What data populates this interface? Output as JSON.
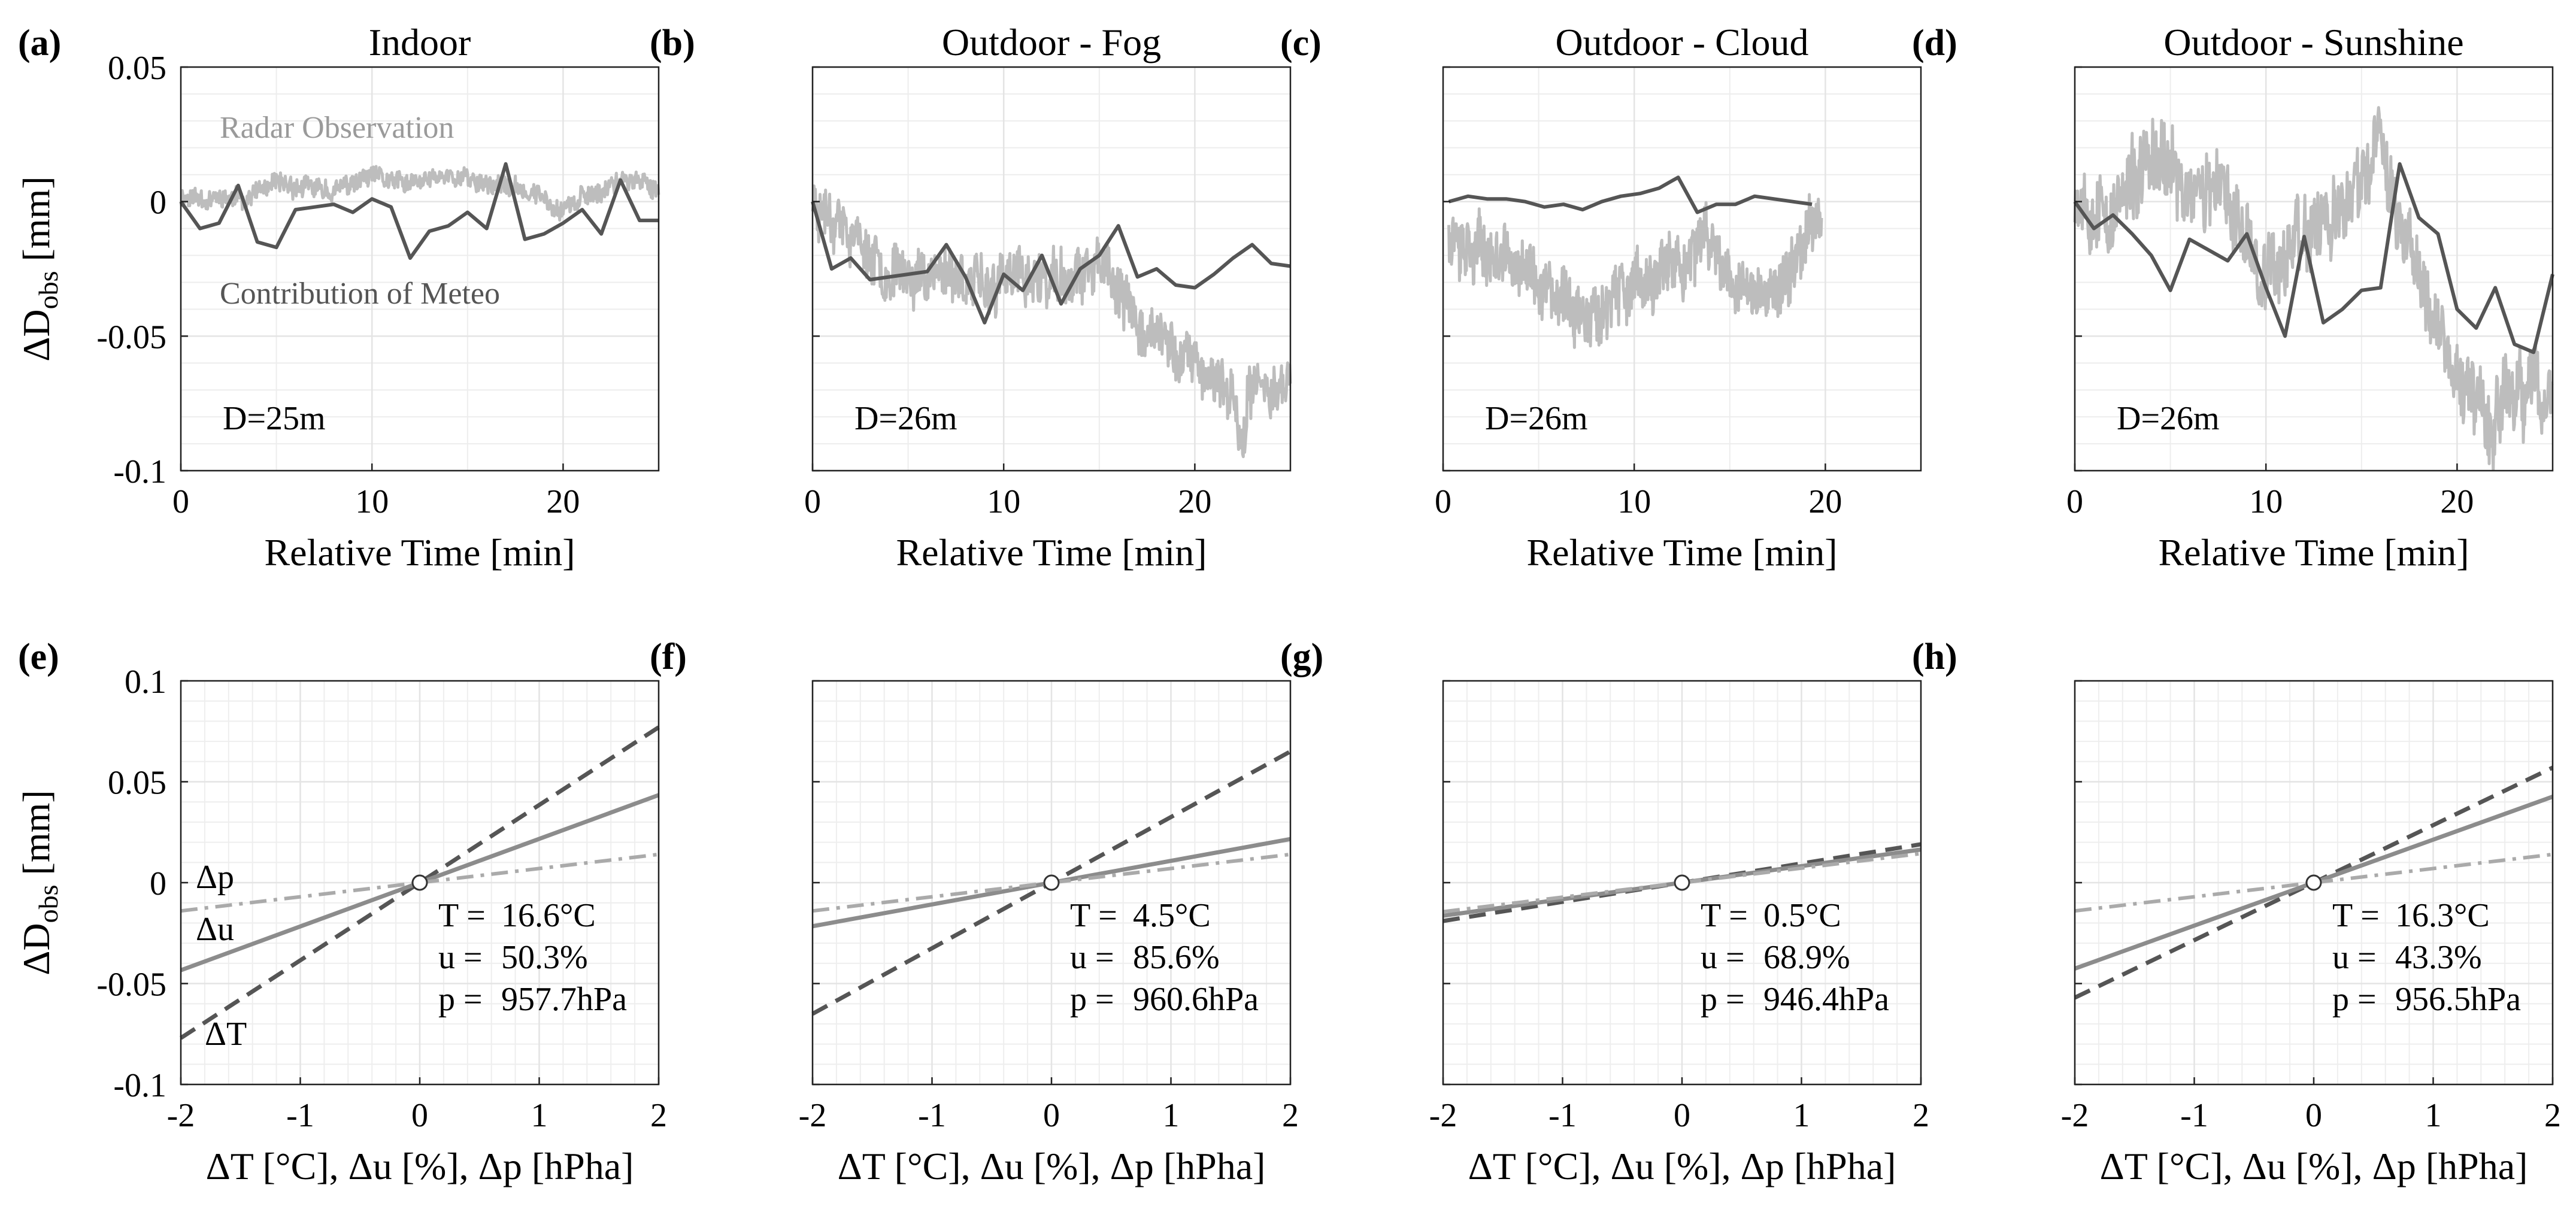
{
  "chart_data": [
    {
      "panel": "(a)",
      "type": "line",
      "title": "Indoor",
      "xlabel": "Relative Time [min]",
      "ylabel": "ΔD",
      "ylabel_sub": "obs",
      "ylabel_unit": "[mm]",
      "xlim": [
        0,
        25
      ],
      "ylim": [
        -0.1,
        0.05
      ],
      "xticks": [
        0,
        10,
        20
      ],
      "xtick_labels": [
        "0",
        "10",
        "20"
      ],
      "yticks": [
        -0.1,
        -0.05,
        0,
        0.05
      ],
      "ytick_labels": [
        "-0.1",
        "-0.05",
        "0",
        "0.05"
      ],
      "grid": true,
      "annotation": "D=25m",
      "legend_labels": [
        "Radar Observation",
        "Contribution of Meteo"
      ],
      "radar_seed": 11,
      "radar_anchors": {
        "x": [
          0,
          3,
          5,
          8,
          10,
          12,
          14,
          16,
          18,
          20,
          22,
          23,
          25
        ],
        "y": [
          0.002,
          0.001,
          0.006,
          0.004,
          0.009,
          0.006,
          0.01,
          0.007,
          0.004,
          -0.002,
          0.004,
          0.009,
          0.005
        ]
      },
      "radar_noise": 0.003,
      "series": [
        {
          "name": "Contribution of Meteo",
          "x": [
            0,
            1,
            2,
            3,
            4,
            5,
            6,
            7,
            8,
            9,
            10,
            11,
            12,
            13,
            14,
            15,
            16,
            17,
            18,
            19,
            20,
            21,
            22,
            23,
            24,
            25
          ],
          "y": [
            0,
            -0.01,
            -0.008,
            0.006,
            -0.015,
            -0.017,
            -0.003,
            -0.002,
            -0.001,
            -0.004,
            0.001,
            -0.002,
            -0.021,
            -0.011,
            -0.009,
            -0.004,
            -0.01,
            0.014,
            -0.014,
            -0.012,
            -0.008,
            -0.003,
            -0.012,
            0.008,
            -0.007,
            -0.007
          ]
        }
      ]
    },
    {
      "panel": "(b)",
      "type": "line",
      "title": "Outdoor - Fog",
      "xlabel": "Relative Time [min]",
      "xlim": [
        0,
        25
      ],
      "ylim": [
        -0.1,
        0.05
      ],
      "xticks": [
        0,
        10,
        20
      ],
      "xtick_labels": [
        "0",
        "10",
        "20"
      ],
      "yticks": [
        -0.1,
        -0.05,
        0,
        0.05
      ],
      "ytick_labels": [],
      "grid": true,
      "annotation": "D=26m",
      "radar_seed": 23,
      "radar_anchors": {
        "x": [
          0,
          1,
          3,
          5,
          7,
          9,
          11,
          13,
          15,
          17,
          19,
          20,
          21,
          22,
          22.5,
          23,
          25
        ],
        "y": [
          0,
          -0.003,
          -0.02,
          -0.028,
          -0.025,
          -0.032,
          -0.028,
          -0.03,
          -0.025,
          -0.045,
          -0.055,
          -0.06,
          -0.065,
          -0.072,
          -0.09,
          -0.07,
          -0.065
        ]
      },
      "radar_noise": 0.008,
      "series": [
        {
          "name": "Contribution of Meteo",
          "x": [
            0,
            1,
            2,
            3,
            4,
            5,
            6,
            7,
            8,
            9,
            10,
            11,
            12,
            13,
            14,
            15,
            16,
            17,
            18,
            19,
            20,
            21,
            22,
            23,
            24,
            25
          ],
          "y": [
            0,
            -0.025,
            -0.021,
            -0.029,
            -0.028,
            -0.027,
            -0.026,
            -0.016,
            -0.028,
            -0.045,
            -0.027,
            -0.033,
            -0.02,
            -0.038,
            -0.025,
            -0.02,
            -0.009,
            -0.028,
            -0.025,
            -0.031,
            -0.032,
            -0.027,
            -0.021,
            -0.016,
            -0.023,
            -0.024
          ]
        }
      ]
    },
    {
      "panel": "(c)",
      "type": "line",
      "title": "Outdoor - Cloud",
      "xlabel": "Relative Time [min]",
      "xlim": [
        0,
        25
      ],
      "ylim": [
        -0.1,
        0.05
      ],
      "xticks": [
        0,
        10,
        20
      ],
      "xtick_labels": [
        "0",
        "10",
        "20"
      ],
      "yticks": [
        -0.1,
        -0.05,
        0,
        0.05
      ],
      "ytick_labels": [],
      "grid": true,
      "annotation": "D=26m",
      "radar_seed": 37,
      "radar_anchors": {
        "x": [
          0.3,
          2,
          4,
          6,
          8,
          10,
          12,
          14,
          16,
          18,
          19,
          19.8
        ],
        "y": [
          -0.01,
          -0.018,
          -0.025,
          -0.038,
          -0.04,
          -0.032,
          -0.025,
          -0.015,
          -0.035,
          -0.03,
          -0.012,
          -0.002
        ]
      },
      "radar_noise": 0.009,
      "series": [
        {
          "name": "Contribution of Meteo",
          "x": [
            0.3,
            1.3,
            2.3,
            3.3,
            4.3,
            5.3,
            6.3,
            7.3,
            8.3,
            9.3,
            10.3,
            11.3,
            12.3,
            13.3,
            14.3,
            15.3,
            16.3,
            17.3,
            18.3,
            19.3
          ],
          "y": [
            0,
            0.002,
            0.001,
            0.001,
            0,
            -0.002,
            -0.001,
            -0.003,
            0,
            0.002,
            0.003,
            0.005,
            0.009,
            -0.004,
            -0.001,
            -0.001,
            0.002,
            0.001,
            0,
            -0.001
          ]
        }
      ]
    },
    {
      "panel": "(d)",
      "type": "line",
      "title": "Outdoor - Sunshine",
      "xlabel": "Relative Time [min]",
      "xlim": [
        0,
        25
      ],
      "ylim": [
        -0.1,
        0.05
      ],
      "xticks": [
        0,
        10,
        20
      ],
      "xtick_labels": [
        "0",
        "10",
        "20"
      ],
      "yticks": [
        -0.1,
        -0.05,
        0,
        0.05
      ],
      "ytick_labels": [],
      "grid": true,
      "annotation": "D=26m",
      "radar_seed": 53,
      "radar_anchors": {
        "x": [
          0,
          2,
          4,
          6,
          8,
          10,
          12,
          14,
          16,
          17,
          18,
          19,
          20,
          21,
          22,
          23,
          25
        ],
        "y": [
          0.005,
          -0.005,
          0.015,
          0.005,
          0.0,
          -0.025,
          -0.01,
          -0.005,
          0.02,
          -0.01,
          -0.02,
          -0.045,
          -0.065,
          -0.075,
          -0.08,
          -0.07,
          -0.075
        ]
      },
      "radar_noise": 0.012,
      "series": [
        {
          "name": "Contribution of Meteo",
          "x": [
            0,
            1,
            2,
            3,
            4,
            5,
            6,
            7,
            8,
            9,
            10,
            11,
            12,
            13,
            14,
            15,
            16,
            17,
            18,
            19,
            20,
            21,
            22,
            23,
            24,
            25
          ],
          "y": [
            0,
            -0.01,
            -0.005,
            -0.012,
            -0.02,
            -0.033,
            -0.014,
            -0.018,
            -0.022,
            -0.012,
            -0.032,
            -0.05,
            -0.013,
            -0.045,
            -0.04,
            -0.033,
            -0.032,
            0.014,
            -0.006,
            -0.012,
            -0.04,
            -0.047,
            -0.032,
            -0.053,
            -0.056,
            -0.027
          ]
        }
      ]
    },
    {
      "panel": "(e)",
      "type": "line",
      "xlabel": "ΔT [°C], Δu [%], Δp [hPha]",
      "ylabel": "ΔD",
      "ylabel_sub": "obs",
      "ylabel_unit": "[mm]",
      "xlim": [
        -2,
        2
      ],
      "ylim": [
        -0.1,
        0.1
      ],
      "xticks": [
        -2,
        -1,
        0,
        1,
        2
      ],
      "xtick_labels": [
        "-2",
        "-1",
        "0",
        "1",
        "2"
      ],
      "yticks": [
        -0.1,
        -0.05,
        0,
        0.05,
        0.1
      ],
      "ytick_labels": [
        "-0.1",
        "-0.05",
        "0",
        "0.05",
        "0.1"
      ],
      "grid": true,
      "minor_grid": true,
      "labels": {
        "T": "T =",
        "u": "u =",
        "p": "p ="
      },
      "conditions": {
        "T": "16.6°C",
        "u": "50.3%",
        "p": "957.7hPa"
      },
      "line_labels": [
        "Δp",
        "Δu",
        "ΔT"
      ],
      "series": [
        {
          "name": "ΔT",
          "slope": 0.0385
        },
        {
          "name": "Δu",
          "slope": 0.0217
        },
        {
          "name": "Δp",
          "slope": 0.007
        }
      ],
      "origin_marker": [
        0,
        0
      ]
    },
    {
      "panel": "(f)",
      "type": "line",
      "xlabel": "ΔT [°C], Δu [%], Δp [hPha]",
      "xlim": [
        -2,
        2
      ],
      "ylim": [
        -0.1,
        0.1
      ],
      "xticks": [
        -2,
        -1,
        0,
        1,
        2
      ],
      "xtick_labels": [
        "-2",
        "-1",
        "0",
        "1",
        "2"
      ],
      "yticks": [
        -0.1,
        -0.05,
        0,
        0.05,
        0.1
      ],
      "ytick_labels": [],
      "grid": true,
      "minor_grid": true,
      "labels": {
        "T": "T =",
        "u": "u =",
        "p": "p ="
      },
      "conditions": {
        "T": "4.5°C",
        "u": "85.6%",
        "p": "960.6hPa"
      },
      "series": [
        {
          "name": "ΔT",
          "slope": 0.0325
        },
        {
          "name": "Δu",
          "slope": 0.0108
        },
        {
          "name": "Δp",
          "slope": 0.007
        }
      ],
      "origin_marker": [
        0,
        0
      ]
    },
    {
      "panel": "(g)",
      "type": "line",
      "xlabel": "ΔT [°C], Δu [%], Δp [hPha]",
      "xlim": [
        -2,
        2
      ],
      "ylim": [
        -0.1,
        0.1
      ],
      "xticks": [
        -2,
        -1,
        0,
        1,
        2
      ],
      "xtick_labels": [
        "-2",
        "-1",
        "0",
        "1",
        "2"
      ],
      "yticks": [
        -0.1,
        -0.05,
        0,
        0.05,
        0.1
      ],
      "ytick_labels": [],
      "grid": true,
      "minor_grid": true,
      "labels": {
        "T": "T =",
        "u": "u =",
        "p": "p ="
      },
      "conditions": {
        "T": "0.5°C",
        "u": "68.9%",
        "p": "946.4hPa"
      },
      "series": [
        {
          "name": "ΔT",
          "slope": 0.0095
        },
        {
          "name": "Δu",
          "slope": 0.0082
        },
        {
          "name": "Δp",
          "slope": 0.0072
        }
      ],
      "origin_marker": [
        0,
        0
      ]
    },
    {
      "panel": "(h)",
      "type": "line",
      "xlabel": "ΔT [°C], Δu [%], Δp [hPha]",
      "xlim": [
        -2,
        2
      ],
      "ylim": [
        -0.1,
        0.1
      ],
      "xticks": [
        -2,
        -1,
        0,
        1,
        2
      ],
      "xtick_labels": [
        "-2",
        "-1",
        "0",
        "1",
        "2"
      ],
      "yticks": [
        -0.1,
        -0.05,
        0,
        0.05,
        0.1
      ],
      "ytick_labels": [],
      "grid": true,
      "minor_grid": true,
      "labels": {
        "T": "T =",
        "u": "u =",
        "p": "p ="
      },
      "conditions": {
        "T": "16.3°C",
        "u": "43.3%",
        "p": "956.5hPa"
      },
      "series": [
        {
          "name": "ΔT",
          "slope": 0.0285
        },
        {
          "name": "Δu",
          "slope": 0.0213
        },
        {
          "name": "Δp",
          "slope": 0.007
        }
      ],
      "origin_marker": [
        0,
        0
      ]
    }
  ],
  "colors": {
    "radar": "#bdbdbd",
    "meteo": "#555555",
    "dT": "#555555",
    "du": "#8c8c8c",
    "dp": "#aaaaaa",
    "grid": "#e4e4e4",
    "axis": "#222222",
    "legend_radar": "#9a9a9a",
    "legend_meteo": "#555555"
  }
}
